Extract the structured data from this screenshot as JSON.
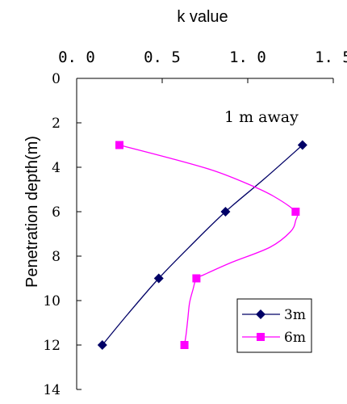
{
  "chart_data": {
    "type": "line",
    "title": "",
    "xlabel": "k value",
    "ylabel": "Penetration depth(m)",
    "x_axis_position": "top",
    "y_inverted": true,
    "xlim": [
      0,
      1.5
    ],
    "ylim": [
      0,
      14
    ],
    "x_ticks": [
      "0. 0",
      "0. 5",
      "1. 0",
      "1. 5"
    ],
    "x_tick_values": [
      0,
      0.5,
      1.0,
      1.5
    ],
    "y_ticks": [
      "0",
      "2",
      "4",
      "6",
      "8",
      "10",
      "12",
      "14"
    ],
    "y_tick_values": [
      0,
      2,
      4,
      6,
      8,
      10,
      12,
      14
    ],
    "annotation": "1 m away",
    "legend_position": "bottom-right",
    "grid": false,
    "series": [
      {
        "name": "3m",
        "color": "#000066",
        "marker": "diamond",
        "points": [
          [
            1.32,
            3
          ],
          [
            0.87,
            6
          ],
          [
            0.48,
            9
          ],
          [
            0.15,
            12
          ]
        ],
        "curve": [
          [
            1.32,
            3
          ],
          [
            1.1,
            4.5
          ],
          [
            0.87,
            6
          ],
          [
            0.67,
            7.5
          ],
          [
            0.48,
            9
          ],
          [
            0.3,
            10.6
          ],
          [
            0.15,
            12
          ]
        ]
      },
      {
        "name": "6m",
        "color": "#FF00FF",
        "marker": "square",
        "points": [
          [
            0.25,
            3
          ],
          [
            1.28,
            6
          ],
          [
            0.7,
            9
          ],
          [
            0.63,
            12
          ]
        ],
        "curve": [
          [
            0.25,
            3
          ],
          [
            0.55,
            3.6
          ],
          [
            0.8,
            4.15
          ],
          [
            1.0,
            4.75
          ],
          [
            1.15,
            5.3
          ],
          [
            1.28,
            6
          ],
          [
            1.28,
            6.4
          ],
          [
            1.25,
            6.9
          ],
          [
            1.13,
            7.6
          ],
          [
            0.9,
            8.3
          ],
          [
            0.74,
            8.85
          ],
          [
            0.7,
            9
          ],
          [
            0.68,
            9.5
          ],
          [
            0.66,
            10.1
          ],
          [
            0.65,
            10.8
          ],
          [
            0.64,
            11.5
          ],
          [
            0.63,
            12
          ]
        ]
      }
    ]
  }
}
